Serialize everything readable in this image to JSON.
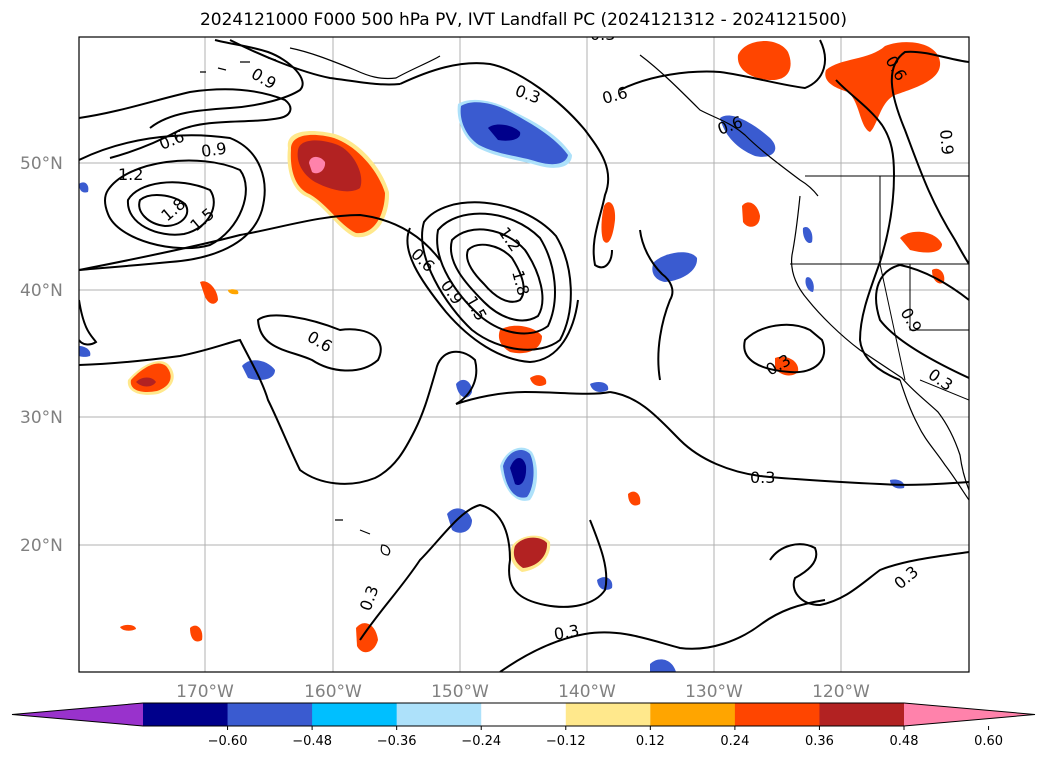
{
  "title": "2024121000 F000 500 hPa PV, IVT Landfall PC (2024121312 - 2024121500)",
  "map": {
    "lat_labels": [
      "50°N",
      "40°N",
      "30°N",
      "20°N"
    ],
    "lon_labels": [
      "170°W",
      "160°W",
      "150°W",
      "140°W",
      "130°W",
      "120°W"
    ],
    "contour_labels": [
      "0.9",
      "0.6",
      "1.2",
      "0.9",
      "1.8",
      "1.5",
      "0.3",
      "0.6",
      "0.6",
      "0.9",
      "1.2",
      "1.8",
      "0.6",
      "0.9",
      "1.5",
      "0.6",
      "0.9",
      "0.6",
      "0.3",
      "0.3",
      "0.3",
      "0.3",
      "0.3",
      "0.3",
      "0.3"
    ],
    "projection": "PlateCarree",
    "grid": true
  },
  "colorbar": {
    "ticks": [
      "−0.60",
      "−0.48",
      "−0.36",
      "−0.24",
      "−0.12",
      "0.12",
      "0.24",
      "0.36",
      "0.48",
      "0.60"
    ],
    "colors": [
      "#9932CC",
      "#00008B",
      "#3A5BD0",
      "#00BFFF",
      "#ADE1FA",
      "#FFFFFF",
      "#FFE88C",
      "#FFA500",
      "#FF4500",
      "#B22222",
      "#FF82AB"
    ],
    "extend": "both"
  },
  "legend_colors": {
    "contour_line": "#000000",
    "coastline": "#000000",
    "gridline": "#b0b0b0"
  }
}
